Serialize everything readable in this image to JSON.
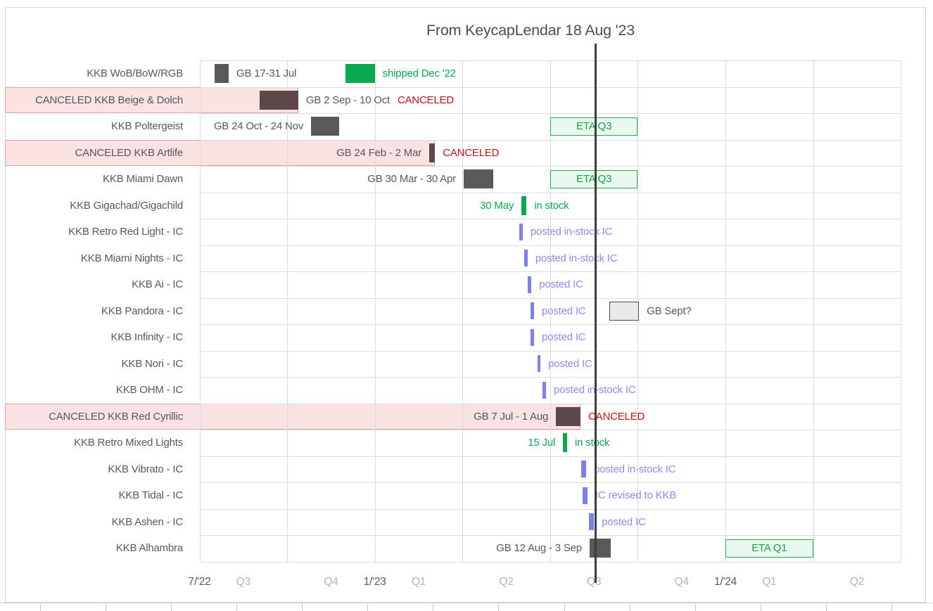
{
  "title": "From KeycapLendar 18 Aug '23",
  "colors": {
    "bar_gray": "#595959",
    "bar_canceled": "#5c4848",
    "green": "#0aa84f",
    "purple_bar": "#7c80ee",
    "purple_text": "#8a8ef1",
    "red": "#c41414",
    "eta_border": "#27ab50",
    "eta_fill": "#e9f8ee",
    "eta_text": "#19a049",
    "canceled_row_fill": "#f9e2e1",
    "canceled_row_border": "#dca5a3",
    "grid": "#dcdcdc",
    "axis_dark": "#595959",
    "axis_light": "#b5b5b5",
    "today_line": "#3d3d3d"
  },
  "chart_data": {
    "type": "gantt-timeline",
    "title": "From KeycapLendar 18 Aug '23",
    "time_axis": {
      "note": "month 0 = Jul 2022, month 24 = Jul 2024, gridlines every quarter",
      "months_total": 24,
      "ticks": [
        {
          "label": "7/'22",
          "m": 0,
          "emph": true
        },
        {
          "label": "Q3",
          "m": 1.5,
          "emph": false
        },
        {
          "label": "Q4",
          "m": 4.5,
          "emph": false
        },
        {
          "label": "1/'23",
          "m": 6,
          "emph": true
        },
        {
          "label": "Q1",
          "m": 7.5,
          "emph": false
        },
        {
          "label": "Q2",
          "m": 10.5,
          "emph": false
        },
        {
          "label": "Q3",
          "m": 13.5,
          "emph": false
        },
        {
          "label": "Q4",
          "m": 16.5,
          "emph": false
        },
        {
          "label": "1/'24",
          "m": 18,
          "emph": true
        },
        {
          "label": "Q1",
          "m": 19.5,
          "emph": false
        },
        {
          "label": "Q2",
          "m": 22.5,
          "emph": false
        }
      ]
    },
    "today": {
      "month": 13.55,
      "date": "18 Aug '23"
    },
    "rows": [
      {
        "label": "KKB WoB/BoW/RGB",
        "canceled": false,
        "items": [
          {
            "type": "bar",
            "style": "gray",
            "start": 0.52,
            "end": 1.0
          },
          {
            "type": "text",
            "style": "gray",
            "text": "GB 17-31 Jul"
          },
          {
            "type": "bar",
            "style": "green",
            "start": 5,
            "end": 6
          },
          {
            "type": "text",
            "style": "green",
            "text": "shipped Dec '22"
          }
        ]
      },
      {
        "label": "CANCELED KKB Beige & Dolch",
        "canceled": true,
        "items": [
          {
            "type": "bar",
            "style": "darkred",
            "start": 2.07,
            "end": 3.38
          },
          {
            "type": "text",
            "style": "gray",
            "text": "GB 2 Sep - 10 Oct"
          },
          {
            "type": "text",
            "style": "red",
            "text": "CANCELED"
          }
        ]
      },
      {
        "label": "KKB Poltergeist",
        "canceled": false,
        "items": [
          {
            "type": "text",
            "style": "gray",
            "text": "GB 24 Oct - 24 Nov",
            "pos": "before"
          },
          {
            "type": "bar",
            "style": "gray",
            "start": 3.82,
            "end": 4.78
          },
          {
            "type": "box",
            "style": "eta",
            "start": 12,
            "end": 15,
            "text": "ETA Q3"
          }
        ]
      },
      {
        "label": "CANCELED KKB Artlife",
        "canceled": true,
        "items": [
          {
            "type": "text",
            "style": "gray",
            "text": "GB 24 Feb - 2 Mar",
            "pos": "before"
          },
          {
            "type": "bar",
            "style": "darkred",
            "start": 7.86,
            "end": 8.06
          },
          {
            "type": "text",
            "style": "red",
            "text": "CANCELED"
          }
        ]
      },
      {
        "label": "KKB Miami Dawn",
        "canceled": false,
        "items": [
          {
            "type": "text",
            "style": "gray",
            "text": "GB 30 Mar - 30 Apr",
            "pos": "before"
          },
          {
            "type": "bar",
            "style": "gray",
            "start": 9.04,
            "end": 10.06
          },
          {
            "type": "box",
            "style": "eta",
            "start": 12,
            "end": 15,
            "text": "ETA Q3"
          }
        ]
      },
      {
        "label": "KKB Gigachad/Gigachild",
        "canceled": false,
        "items": [
          {
            "type": "text",
            "style": "green",
            "text": "30 May",
            "pos": "before"
          },
          {
            "type": "bar",
            "style": "green",
            "start": 11.02,
            "end": 11.19
          },
          {
            "type": "text",
            "style": "green",
            "text": "in stock"
          }
        ]
      },
      {
        "label": "KKB Retro Red Light - IC",
        "canceled": false,
        "items": [
          {
            "type": "bar",
            "style": "purple",
            "start": 10.94,
            "end": 11.06
          },
          {
            "type": "text",
            "style": "purple",
            "text": "posted in-stock IC"
          }
        ]
      },
      {
        "label": "KKB Miami Nights - IC",
        "canceled": false,
        "items": [
          {
            "type": "bar",
            "style": "purple",
            "start": 11.11,
            "end": 11.23
          },
          {
            "type": "text",
            "style": "purple",
            "text": "posted in-stock IC"
          }
        ]
      },
      {
        "label": "KKB Ai - IC",
        "canceled": false,
        "items": [
          {
            "type": "bar",
            "style": "purple",
            "start": 11.23,
            "end": 11.36
          },
          {
            "type": "text",
            "style": "purple",
            "text": "posted IC"
          }
        ]
      },
      {
        "label": "KKB Pandora - IC",
        "canceled": false,
        "items": [
          {
            "type": "bar",
            "style": "purple",
            "start": 11.34,
            "end": 11.45
          },
          {
            "type": "text",
            "style": "purple",
            "text": "posted IC"
          },
          {
            "type": "box",
            "style": "ghost",
            "start": 14.03,
            "end": 15.04,
            "text": ""
          },
          {
            "type": "text",
            "style": "gray",
            "text": "GB Sept?"
          }
        ]
      },
      {
        "label": "KKB Infinity - IC",
        "canceled": false,
        "items": [
          {
            "type": "bar",
            "style": "purple",
            "start": 11.34,
            "end": 11.45
          },
          {
            "type": "text",
            "style": "purple",
            "text": "posted IC"
          }
        ]
      },
      {
        "label": "KKB Nori - IC",
        "canceled": false,
        "items": [
          {
            "type": "bar",
            "style": "purple",
            "start": 11.56,
            "end": 11.67
          },
          {
            "type": "text",
            "style": "purple",
            "text": "posted IC"
          }
        ]
      },
      {
        "label": "KKB OHM - IC",
        "canceled": false,
        "items": [
          {
            "type": "bar",
            "style": "purple",
            "start": 11.74,
            "end": 11.86
          },
          {
            "type": "text",
            "style": "purple",
            "text": "posted in-stock IC"
          }
        ]
      },
      {
        "label": "CANCELED KKB Red Cyrillic",
        "canceled": true,
        "items": [
          {
            "type": "text",
            "style": "gray",
            "text": "GB 7 Jul - 1 Aug",
            "pos": "before"
          },
          {
            "type": "bar",
            "style": "darkred",
            "start": 12.2,
            "end": 13.04
          },
          {
            "type": "text",
            "style": "red",
            "text": "CANCELED"
          }
        ]
      },
      {
        "label": "KKB Retro Mixed Lights",
        "canceled": false,
        "items": [
          {
            "type": "text",
            "style": "green",
            "text": "15 Jul",
            "pos": "before"
          },
          {
            "type": "bar",
            "style": "green",
            "start": 12.44,
            "end": 12.58
          },
          {
            "type": "text",
            "style": "green",
            "text": "in stock"
          }
        ]
      },
      {
        "label": "KKB Vibrato - IC",
        "canceled": false,
        "items": [
          {
            "type": "bar",
            "style": "purple",
            "start": 13.07,
            "end": 13.23
          },
          {
            "type": "text",
            "style": "purple",
            "text": "posted in-stock IC"
          }
        ]
      },
      {
        "label": "KKB Tidal - IC",
        "canceled": false,
        "items": [
          {
            "type": "bar",
            "style": "purple",
            "start": 13.11,
            "end": 13.28
          },
          {
            "type": "text",
            "style": "purple",
            "text": "IC revised to KKB"
          }
        ]
      },
      {
        "label": "KKB Ashen - IC",
        "canceled": false,
        "items": [
          {
            "type": "bar",
            "style": "purple",
            "start": 13.33,
            "end": 13.5
          },
          {
            "type": "text",
            "style": "purple",
            "text": "posted IC"
          }
        ]
      },
      {
        "label": "KKB Alhambra",
        "canceled": false,
        "items": [
          {
            "type": "text",
            "style": "gray",
            "text": "GB 12 Aug - 3 Sep",
            "pos": "before"
          },
          {
            "type": "bar",
            "style": "gray",
            "start": 13.35,
            "end": 14.08
          },
          {
            "type": "box",
            "style": "eta",
            "start": 18,
            "end": 21,
            "text": "ETA Q1"
          }
        ]
      }
    ]
  }
}
